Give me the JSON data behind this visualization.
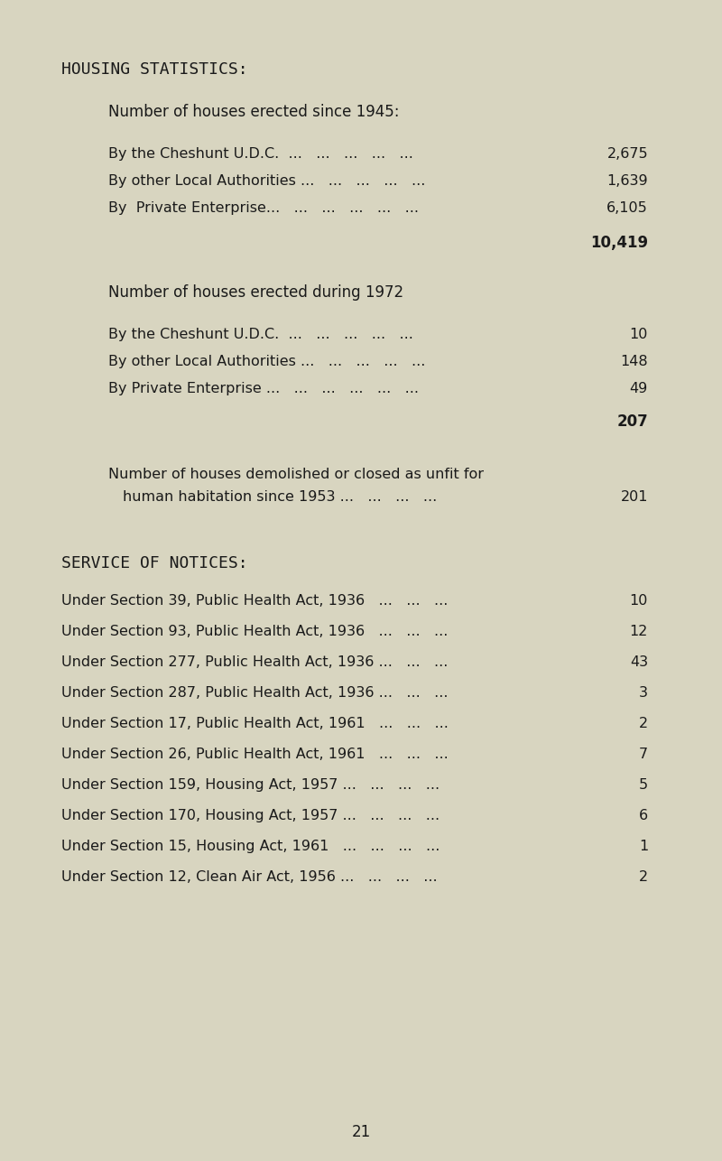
{
  "bg_color": "#d8d5c0",
  "text_color": "#1a1a1a",
  "page_number": "21",
  "title": "HOUSING STATISTICS:",
  "section1_heading": "Number of houses erected since 1945:",
  "section1_rows": [
    {
      "label": "By the Cheshunt U.D.C.   ...  ...  ...  ...  ...",
      "value": "2,675"
    },
    {
      "label": "By other Local Authorities ...  ...  ...  ...  ...",
      "value": "1,639"
    },
    {
      "label": "By  Private Enterprise...  ...  ...  ...  ...  ...",
      "value": "6,105"
    }
  ],
  "section1_total": "10,419",
  "section2_heading": "Number of houses erected during 1972",
  "section2_rows": [
    {
      "label": "By the Cheshunt U.D.C.   ...  ...  ...  ...  ...",
      "value": "10"
    },
    {
      "label": "By other Local Authorities ...  ...  ...  ...  ...",
      "value": "148"
    },
    {
      "label": "By Private Enterprise ...  ...  ...  ...  ...  ...",
      "value": "49"
    }
  ],
  "section2_total": "207",
  "section3_text1": "Number of houses demolished or closed as unfit for",
  "section3_text2": "    human habitation since 1953 ...  ...  ...  ...",
  "section3_value": "201",
  "section4_heading": "SERVICE OF NOTICES:",
  "section4_rows": [
    {
      "label": "Under Section 39, Public Health Act, 1936  ...  ...  ...",
      "value": "10"
    },
    {
      "label": "Under Section 93, Public Health Act, 1936  ...  ...  ...",
      "value": "12"
    },
    {
      "label": "Under Section 277, Public Health Act, 1936 ...  ...  ...",
      "value": "43"
    },
    {
      "label": "Under Section 287, Public Health Act, 1936 ...  ...  ...",
      "value": "3"
    },
    {
      "label": "Under Section 17, Public Health Act, 1961  ...  ...  ...",
      "value": "2"
    },
    {
      "label": "Under Section 26, Public Health Act, 1961  ...  ...  ...",
      "value": "7"
    },
    {
      "label": "Under Section 159, Housing Act, 1957 ...  ...  ...  ...",
      "value": "5"
    },
    {
      "label": "Under Section 170, Housing Act, 1957 ...  ...  ...  ...",
      "value": "6"
    },
    {
      "label": "Under Section 15, Housing Act, 1961  ...  ...  ...  ...",
      "value": "1"
    },
    {
      "label": "Under Section 12, Clean Air Act, 1956 ...  ...  ...  ...",
      "value": "2"
    }
  ]
}
